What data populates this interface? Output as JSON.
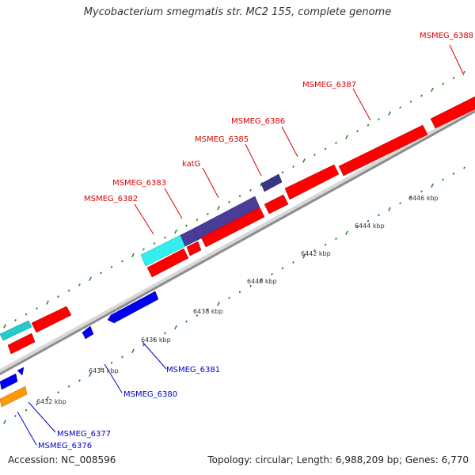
{
  "title": "Mycobacterium smegmatis str. MC2 155, complete genome",
  "footer": {
    "accession": "Accession: NC_008596",
    "topology": "Topology: circular; Length: 6,988,209 bp; Genes: 6,770"
  },
  "colors": {
    "forward_cds": "#ff0000",
    "reverse_cds": "#0000ee",
    "highlight_gene": "#4a3d99",
    "cyan_feature": "#22dddd",
    "orange_feature": "#ff9900",
    "backbone": "#9a9a9a",
    "tick": "#2b8a2b",
    "forward_label": "#dd0000",
    "reverse_label": "#0000cc"
  },
  "gene_labels": [
    {
      "id": "MSMEG_6388",
      "text": "MSMEG_6388",
      "strand": "forward"
    },
    {
      "id": "MSMEG_6387",
      "text": "MSMEG_6387",
      "strand": "forward"
    },
    {
      "id": "MSMEG_6386",
      "text": "MSMEG_6386",
      "strand": "forward"
    },
    {
      "id": "MSMEG_6385",
      "text": "MSMEG_6385",
      "strand": "forward"
    },
    {
      "id": "katG",
      "text": "katG",
      "strand": "forward"
    },
    {
      "id": "MSMEG_6383",
      "text": "MSMEG_6383",
      "strand": "forward"
    },
    {
      "id": "MSMEG_6382",
      "text": "MSMEG_6382",
      "strand": "forward"
    },
    {
      "id": "MSMEG_6381",
      "text": "MSMEG_6381",
      "strand": "reverse"
    },
    {
      "id": "MSMEG_6380",
      "text": "MSMEG_6380",
      "strand": "reverse"
    },
    {
      "id": "MSMEG_6377",
      "text": "MSMEG_6377",
      "strand": "reverse"
    },
    {
      "id": "MSMEG_6376",
      "text": "MSMEG_6376",
      "strand": "reverse"
    }
  ],
  "scale_labels": [
    "6446 kbp",
    "6444 kbp",
    "6442 kbp",
    "6440 kbp",
    "6438 kbp",
    "6436 kbp",
    "6434 kbp",
    "6432 kbp"
  ]
}
